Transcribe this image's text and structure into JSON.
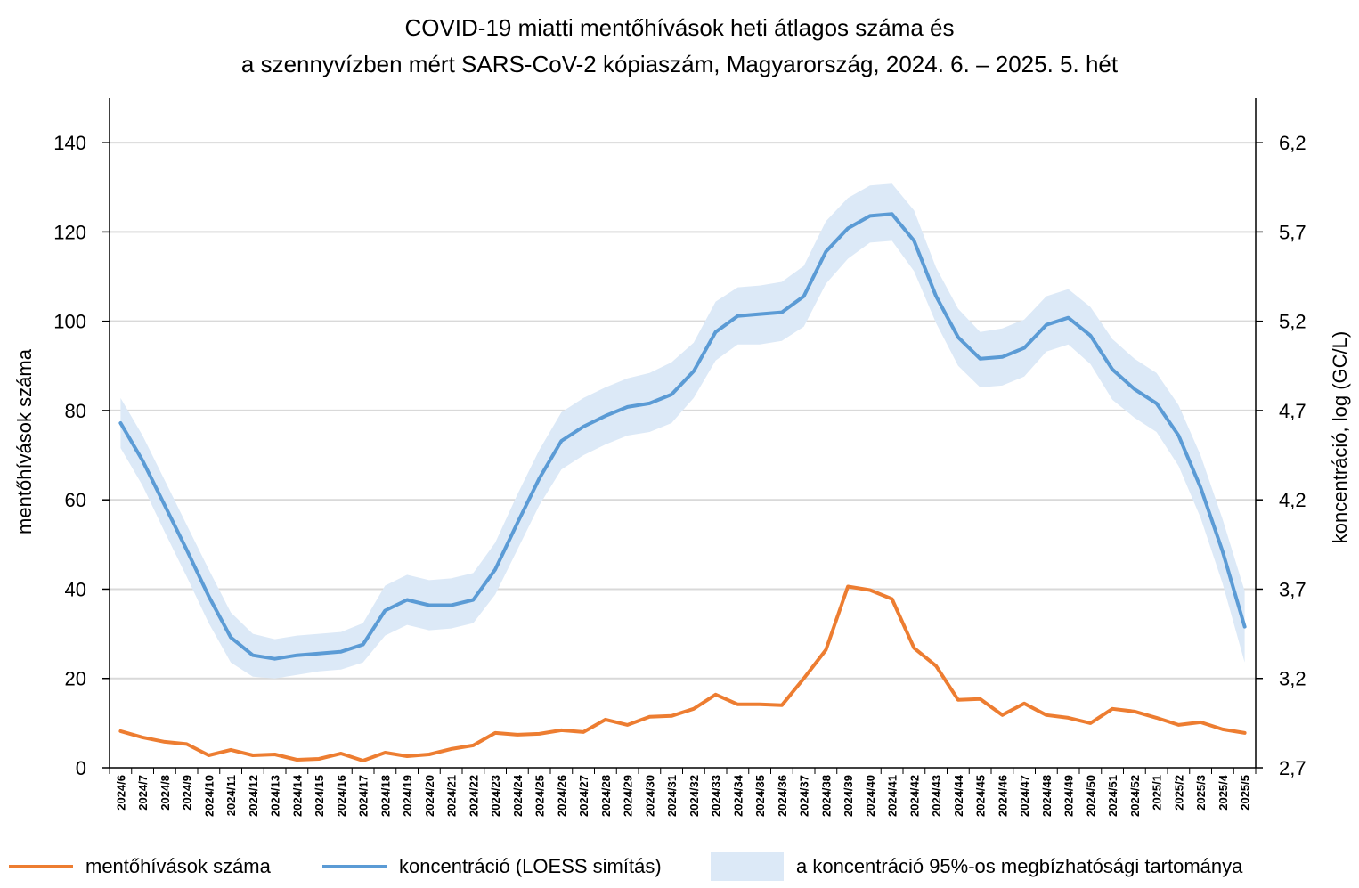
{
  "chart_data": {
    "type": "line",
    "title": "COVID-19 miatti mentőhívások heti átlagos száma és",
    "subtitle": "a szennyvízben mért SARS-CoV-2 kópiaszám, Magyarország, 2024. 6. – 2025. 5. hét",
    "ylabel_left": "mentőhívások száma",
    "ylabel_right": "koncentráció,  log (GC/L)",
    "ylim_left": [
      0,
      150
    ],
    "ylim_right": [
      2.7,
      6.45
    ],
    "yticks_left": [
      0,
      20,
      40,
      60,
      80,
      100,
      120,
      140
    ],
    "yticks_right": [
      2.7,
      3.2,
      3.7,
      4.2,
      4.7,
      5.2,
      5.7,
      6.2
    ],
    "yticks_right_labels": [
      "2,7",
      "3,2",
      "3,7",
      "4,2",
      "4,7",
      "5,2",
      "5,7",
      "6,2"
    ],
    "categories": [
      "2024/6",
      "2024/7",
      "2024/8",
      "2024/9",
      "2024/10",
      "2024/11",
      "2024/12",
      "2024/13",
      "2024/14",
      "2024/15",
      "2024/16",
      "2024/17",
      "2024/18",
      "2024/19",
      "2024/20",
      "2024/21",
      "2024/22",
      "2024/23",
      "2024/24",
      "2024/25",
      "2024/26",
      "2024/27",
      "2024/28",
      "2024/29",
      "2024/30",
      "2024/31",
      "2024/32",
      "2024/33",
      "2024/34",
      "2024/35",
      "2024/36",
      "2024/37",
      "2024/38",
      "2024/39",
      "2024/40",
      "2024/41",
      "2024/42",
      "2024/43",
      "2024/44",
      "2024/45",
      "2024/46",
      "2024/47",
      "2024/48",
      "2024/49",
      "2024/50",
      "2024/51",
      "2024/52",
      "2025/1",
      "2025/2",
      "2025/3",
      "2025/4",
      "2025/5"
    ],
    "series": [
      {
        "name": "mentőhívások száma",
        "axis": "left",
        "color": "#ed7d31",
        "values": [
          8.2,
          6.8,
          5.8,
          5.3,
          2.8,
          4.0,
          2.8,
          3.0,
          1.8,
          2.0,
          3.2,
          1.6,
          3.4,
          2.6,
          3.0,
          4.2,
          5.0,
          7.8,
          7.4,
          7.6,
          8.4,
          8.0,
          10.8,
          9.6,
          11.4,
          11.6,
          13.2,
          16.4,
          14.2,
          14.2,
          14.0,
          20.0,
          26.4,
          40.6,
          39.8,
          37.8,
          26.8,
          22.8,
          15.2,
          15.4,
          11.8,
          14.4,
          11.8,
          11.2,
          10.0,
          13.2,
          12.6,
          11.2,
          9.6,
          10.2,
          8.6,
          7.8
        ]
      },
      {
        "name": "koncentráció (LOESS simítás)",
        "axis": "right",
        "color": "#5b9bd5",
        "values": [
          4.63,
          4.42,
          4.17,
          3.92,
          3.66,
          3.43,
          3.33,
          3.31,
          3.33,
          3.34,
          3.35,
          3.39,
          3.58,
          3.64,
          3.61,
          3.61,
          3.64,
          3.81,
          4.07,
          4.32,
          4.53,
          4.61,
          4.67,
          4.72,
          4.74,
          4.79,
          4.92,
          5.14,
          5.23,
          5.24,
          5.25,
          5.34,
          5.59,
          5.72,
          5.79,
          5.8,
          5.65,
          5.34,
          5.11,
          4.99,
          5.0,
          5.05,
          5.18,
          5.22,
          5.12,
          4.93,
          4.82,
          4.74,
          4.56,
          4.27,
          3.91,
          3.49
        ]
      }
    ],
    "band": {
      "name": "a koncentráció 95%-os megbízhatósági tartománya",
      "color": "#dce9f7",
      "lower": [
        4.49,
        4.28,
        4.02,
        3.77,
        3.51,
        3.29,
        3.21,
        3.2,
        3.22,
        3.24,
        3.25,
        3.29,
        3.44,
        3.5,
        3.47,
        3.48,
        3.51,
        3.67,
        3.92,
        4.17,
        4.37,
        4.45,
        4.51,
        4.56,
        4.58,
        4.63,
        4.77,
        4.98,
        5.07,
        5.07,
        5.09,
        5.17,
        5.41,
        5.55,
        5.64,
        5.65,
        5.48,
        5.19,
        4.95,
        4.83,
        4.84,
        4.89,
        5.03,
        5.07,
        4.96,
        4.76,
        4.66,
        4.58,
        4.39,
        4.1,
        3.73,
        3.29
      ],
      "upper": [
        4.77,
        4.56,
        4.31,
        4.06,
        3.81,
        3.57,
        3.45,
        3.42,
        3.44,
        3.45,
        3.46,
        3.51,
        3.72,
        3.78,
        3.75,
        3.76,
        3.79,
        3.96,
        4.23,
        4.48,
        4.69,
        4.77,
        4.83,
        4.88,
        4.91,
        4.97,
        5.08,
        5.31,
        5.39,
        5.4,
        5.42,
        5.51,
        5.76,
        5.89,
        5.96,
        5.97,
        5.82,
        5.5,
        5.27,
        5.14,
        5.16,
        5.21,
        5.34,
        5.38,
        5.28,
        5.1,
        4.99,
        4.91,
        4.73,
        4.45,
        4.09,
        3.69
      ]
    }
  },
  "legend": {
    "orange_label": "mentőhívások száma",
    "blue_label": "koncentráció (LOESS simítás)",
    "band_label": "a koncentráció 95%-os megbízhatósági tartománya"
  }
}
